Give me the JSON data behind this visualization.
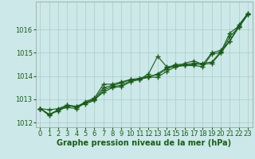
{
  "xlabel": "Graphe pression niveau de la mer (hPa)",
  "bg_color": "#cce8e8",
  "grid_color": "#aacccc",
  "line_color": "#1a5c1a",
  "xlim": [
    -0.5,
    23.5
  ],
  "ylim": [
    1011.8,
    1017.2
  ],
  "yticks": [
    1012,
    1013,
    1014,
    1015,
    1016
  ],
  "xticks": [
    0,
    1,
    2,
    3,
    4,
    5,
    6,
    7,
    8,
    9,
    10,
    11,
    12,
    13,
    14,
    15,
    16,
    17,
    18,
    19,
    20,
    21,
    22,
    23
  ],
  "series": [
    [
      1012.6,
      1012.55,
      1012.6,
      1012.75,
      1012.7,
      1012.85,
      1013.0,
      1013.5,
      1013.6,
      1013.7,
      1013.85,
      1013.9,
      1013.95,
      1014.1,
      1014.35,
      1014.5,
      1014.5,
      1014.55,
      1014.55,
      1014.6,
      1015.05,
      1015.85,
      1016.15,
      1016.7
    ],
    [
      1012.6,
      1012.3,
      1012.55,
      1012.75,
      1012.65,
      1012.9,
      1013.05,
      1013.65,
      1013.65,
      1013.75,
      1013.85,
      1013.85,
      1014.1,
      1014.85,
      1014.4,
      1014.4,
      1014.55,
      1014.65,
      1014.5,
      1015.0,
      1015.1,
      1015.5,
      1016.2,
      1016.7
    ],
    [
      1012.6,
      1012.35,
      1012.5,
      1012.7,
      1012.7,
      1012.8,
      1012.95,
      1013.4,
      1013.55,
      1013.6,
      1013.8,
      1013.9,
      1014.0,
      1014.05,
      1014.3,
      1014.45,
      1014.45,
      1014.5,
      1014.5,
      1014.55,
      1015.0,
      1015.7,
      1016.1,
      1016.65
    ],
    [
      1012.6,
      1012.35,
      1012.55,
      1012.65,
      1012.6,
      1012.85,
      1013.0,
      1013.3,
      1013.5,
      1013.55,
      1013.75,
      1013.85,
      1013.95,
      1013.95,
      1014.2,
      1014.4,
      1014.45,
      1014.45,
      1014.4,
      1014.95,
      1015.0,
      1015.5,
      1016.1,
      1016.65
    ]
  ],
  "marker": "+",
  "marker_size": 4,
  "marker_linewidth": 1.0,
  "line_width": 0.8,
  "font_color": "#1a5c1a",
  "xlabel_fontsize": 7,
  "tick_fontsize": 6
}
